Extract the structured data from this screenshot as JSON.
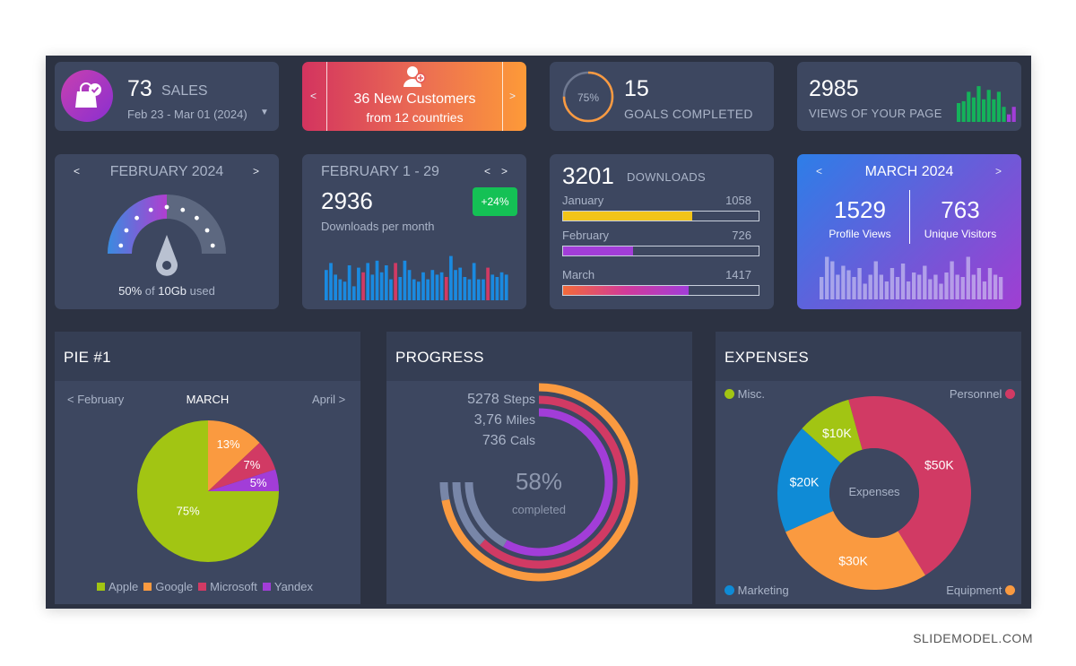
{
  "sales_card": {
    "count": "73",
    "label": "SALES",
    "date_range": "Feb 23 - Mar 01 (2024)"
  },
  "customers_card": {
    "title": "36 New Customers",
    "subtitle": "from 12 countries",
    "prev": "<",
    "next": ">"
  },
  "goals_card": {
    "percent_label": "75%",
    "percent": 0.75,
    "count": "15",
    "label": "GOALS COMPLETED"
  },
  "views_card": {
    "count": "2985",
    "label": "VIEWS OF YOUR PAGE",
    "bar_heights": [
      0.5,
      0.55,
      0.8,
      0.65,
      0.95,
      0.6,
      0.85,
      0.6,
      0.8,
      0.4,
      0.2,
      0.4
    ],
    "bar_colors": [
      "#14b25a",
      "#14b25a",
      "#14b25a",
      "#14b25a",
      "#14b25a",
      "#14b25a",
      "#14b25a",
      "#14b25a",
      "#14b25a",
      "#14b25a",
      "#a23dd8",
      "#a23dd8"
    ]
  },
  "storage_card": {
    "month": "FEBRUARY 2024",
    "prev": "<",
    "next": ">",
    "used_percent": "50%",
    "of_text": "of",
    "capacity": "10Gb",
    "used_text": "used",
    "fill_fraction": 0.5
  },
  "downloads_month_card": {
    "month_range": "FEBRUARY 1 - 29",
    "prev": "<",
    "next": ">",
    "count": "2936",
    "label": "Downloads per month",
    "badge": "+24%",
    "bars": [
      0.65,
      0.8,
      0.55,
      0.45,
      0.4,
      0.75,
      0.3,
      0.7,
      0.6,
      0.8,
      0.55,
      0.85,
      0.6,
      0.75,
      0.45,
      0.8,
      0.5,
      0.85,
      0.65,
      0.45,
      0.4,
      0.6,
      0.45,
      0.65,
      0.55,
      0.6,
      0.5,
      0.95,
      0.65,
      0.7,
      0.5,
      0.45,
      0.8,
      0.45,
      0.45,
      0.7,
      0.55,
      0.5,
      0.6,
      0.55
    ],
    "red_indices": [
      8,
      15,
      26,
      35
    ]
  },
  "downloads_card": {
    "count": "3201",
    "label": "DOWNLOADS",
    "rows": [
      {
        "month": "January",
        "value": "1058",
        "fraction": 0.66,
        "color": "#f2c418"
      },
      {
        "month": "February",
        "value": "726",
        "fraction": 0.36,
        "color": "#a23dd8"
      },
      {
        "month": "March",
        "value": "1417",
        "fraction": 0.64,
        "color": "gradient"
      }
    ]
  },
  "march_card": {
    "month": "MARCH 2024",
    "prev": "<",
    "next": ">",
    "profile_views": "1529",
    "profile_label": "Profile Views",
    "visitors": "763",
    "visitors_label": "Unique Visitors",
    "bars": [
      0.5,
      0.95,
      0.85,
      0.55,
      0.75,
      0.65,
      0.5,
      0.7,
      0.35,
      0.55,
      0.85,
      0.55,
      0.4,
      0.7,
      0.5,
      0.8,
      0.4,
      0.6,
      0.55,
      0.75,
      0.45,
      0.55,
      0.35,
      0.6,
      0.85,
      0.55,
      0.5,
      0.95,
      0.55,
      0.7,
      0.4,
      0.7,
      0.55,
      0.5
    ]
  },
  "pie_panel": {
    "title": "PIE #1",
    "prev_month": "< February",
    "current_month": "MARCH",
    "next_month": "April >",
    "slices": [
      {
        "name": "Apple",
        "value": 75,
        "label": "75%",
        "color": "#a2c513"
      },
      {
        "name": "Google",
        "value": 13,
        "label": "13%",
        "color": "#fa9a40"
      },
      {
        "name": "Microsoft",
        "value": 7,
        "label": "7%",
        "color": "#d13a64"
      },
      {
        "name": "Yandex",
        "value": 5,
        "label": "5%",
        "color": "#a23dd8"
      }
    ]
  },
  "progress_panel": {
    "title": "PROGRESS",
    "steps_value": "5278",
    "steps_unit": "Steps",
    "miles_value": "3,76",
    "miles_unit": "Miles",
    "cals_value": "736",
    "cals_unit": "Cals",
    "percent": "58%",
    "completed_label": "completed",
    "rings": [
      {
        "name": "Steps",
        "fraction": 0.72,
        "color": "#fa9a40"
      },
      {
        "name": "Miles",
        "fraction": 0.62,
        "color": "#d13a64"
      },
      {
        "name": "Cals",
        "fraction": 0.58,
        "color": "#a23dd8"
      }
    ]
  },
  "expenses_panel": {
    "title": "EXPENSES",
    "center_label": "Expenses",
    "legend": {
      "misc": "Misc.",
      "personnel": "Personnel",
      "marketing": "Marketing",
      "equipment": "Equipment"
    },
    "slices": [
      {
        "name": "Personnel",
        "value": 50,
        "label": "$50K",
        "color": "#d13a64"
      },
      {
        "name": "Equipment",
        "value": 30,
        "label": "$30K",
        "color": "#fa9a40"
      },
      {
        "name": "Marketing",
        "value": 20,
        "label": "$20K",
        "color": "#0f8bd6"
      },
      {
        "name": "Misc.",
        "value": 10,
        "label": "$10K",
        "color": "#a2c513"
      }
    ]
  },
  "footer": {
    "credit": "SLIDEMODEL.COM"
  }
}
